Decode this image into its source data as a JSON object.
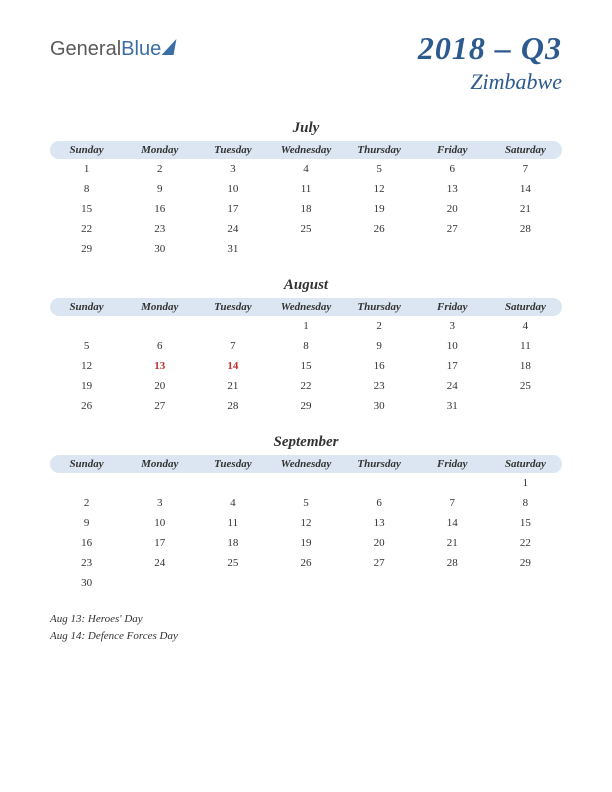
{
  "logo": {
    "part1": "General",
    "part2": "Blue"
  },
  "title": {
    "main": "2018 – Q3",
    "sub": "Zimbabwe"
  },
  "day_labels": [
    "Sunday",
    "Monday",
    "Tuesday",
    "Wednesday",
    "Thursday",
    "Friday",
    "Saturday"
  ],
  "colors": {
    "header_bg": "#dce6f2",
    "title_color": "#2d5a8e",
    "holiday_color": "#c23030",
    "text_color": "#333333"
  },
  "months": [
    {
      "name": "July",
      "weeks": [
        [
          "1",
          "2",
          "3",
          "4",
          "5",
          "6",
          "7"
        ],
        [
          "8",
          "9",
          "10",
          "11",
          "12",
          "13",
          "14"
        ],
        [
          "15",
          "16",
          "17",
          "18",
          "19",
          "20",
          "21"
        ],
        [
          "22",
          "23",
          "24",
          "25",
          "26",
          "27",
          "28"
        ],
        [
          "29",
          "30",
          "31",
          "",
          "",
          "",
          ""
        ]
      ],
      "holidays": []
    },
    {
      "name": "August",
      "weeks": [
        [
          "",
          "",
          "",
          "1",
          "2",
          "3",
          "4"
        ],
        [
          "5",
          "6",
          "7",
          "8",
          "9",
          "10",
          "11"
        ],
        [
          "12",
          "13",
          "14",
          "15",
          "16",
          "17",
          "18"
        ],
        [
          "19",
          "20",
          "21",
          "22",
          "23",
          "24",
          "25"
        ],
        [
          "26",
          "27",
          "28",
          "29",
          "30",
          "31",
          ""
        ]
      ],
      "holidays": [
        "13",
        "14"
      ]
    },
    {
      "name": "September",
      "weeks": [
        [
          "",
          "",
          "",
          "",
          "",
          "",
          "1"
        ],
        [
          "2",
          "3",
          "4",
          "5",
          "6",
          "7",
          "8"
        ],
        [
          "9",
          "10",
          "11",
          "12",
          "13",
          "14",
          "15"
        ],
        [
          "16",
          "17",
          "18",
          "19",
          "20",
          "21",
          "22"
        ],
        [
          "23",
          "24",
          "25",
          "26",
          "27",
          "28",
          "29"
        ],
        [
          "30",
          "",
          "",
          "",
          "",
          "",
          ""
        ]
      ],
      "holidays": []
    }
  ],
  "notes": [
    "Aug 13: Heroes' Day",
    "Aug 14: Defence Forces Day"
  ]
}
